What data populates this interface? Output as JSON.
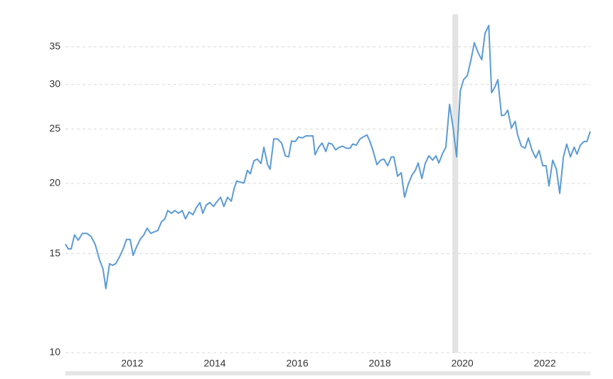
{
  "chart_data": {
    "type": "line",
    "x": [
      2010.38,
      2010.45,
      2010.52,
      2010.6,
      2010.69,
      2010.79,
      2010.9,
      2011.0,
      2011.1,
      2011.21,
      2011.29,
      2011.36,
      2011.45,
      2011.52,
      2011.6,
      2011.69,
      2011.78,
      2011.86,
      2011.95,
      2012.02,
      2012.1,
      2012.19,
      2012.28,
      2012.36,
      2012.45,
      2012.53,
      2012.62,
      2012.71,
      2012.79,
      2012.86,
      2012.95,
      2013.03,
      2013.12,
      2013.21,
      2013.29,
      2013.38,
      2013.47,
      2013.55,
      2013.64,
      2013.71,
      2013.79,
      2013.88,
      2013.97,
      2014.05,
      2014.14,
      2014.22,
      2014.31,
      2014.4,
      2014.47,
      2014.53,
      2014.62,
      2014.71,
      2014.79,
      2014.86,
      2014.95,
      2015.03,
      2015.12,
      2015.19,
      2015.28,
      2015.34,
      2015.43,
      2015.52,
      2015.62,
      2015.71,
      2015.79,
      2015.86,
      2015.95,
      2016.03,
      2016.12,
      2016.21,
      2016.29,
      2016.38,
      2016.43,
      2016.52,
      2016.6,
      2016.69,
      2016.76,
      2016.84,
      2016.93,
      2017.02,
      2017.1,
      2017.19,
      2017.28,
      2017.34,
      2017.43,
      2017.52,
      2017.6,
      2017.69,
      2017.76,
      2017.83,
      2017.93,
      2018.02,
      2018.1,
      2018.19,
      2018.28,
      2018.34,
      2018.43,
      2018.52,
      2018.6,
      2018.69,
      2018.78,
      2018.86,
      2018.93,
      2019.02,
      2019.1,
      2019.19,
      2019.28,
      2019.36,
      2019.43,
      2019.52,
      2019.6,
      2019.69,
      2019.78,
      2019.86,
      2019.95,
      2020.03,
      2020.12,
      2020.21,
      2020.29,
      2020.38,
      2020.47,
      2020.55,
      2020.64,
      2020.71,
      2020.79,
      2020.86,
      2020.95,
      2021.03,
      2021.1,
      2021.19,
      2021.28,
      2021.34,
      2021.43,
      2021.52,
      2021.6,
      2021.69,
      2021.78,
      2021.86,
      2021.95,
      2022.03,
      2022.1,
      2022.19,
      2022.28,
      2022.36,
      2022.45,
      2022.53,
      2022.62,
      2022.71,
      2022.78,
      2022.86,
      2022.95,
      2023.02,
      2023.1
    ],
    "values": [
      15.6,
      15.3,
      15.3,
      16.2,
      15.85,
      16.3,
      16.3,
      16.1,
      15.6,
      14.6,
      14.1,
      13.0,
      14.4,
      14.3,
      14.4,
      14.8,
      15.3,
      15.9,
      15.9,
      14.9,
      15.4,
      15.9,
      16.2,
      16.65,
      16.3,
      16.4,
      16.5,
      17.1,
      17.3,
      17.9,
      17.7,
      17.9,
      17.7,
      17.9,
      17.3,
      17.8,
      17.6,
      18.1,
      18.5,
      17.7,
      18.3,
      18.5,
      18.2,
      18.55,
      18.9,
      18.2,
      18.9,
      18.6,
      19.6,
      20.2,
      20.1,
      20.05,
      21.1,
      20.8,
      21.95,
      22.1,
      21.7,
      23.2,
      21.6,
      21.2,
      24.0,
      24.0,
      23.6,
      22.4,
      22.3,
      23.8,
      23.75,
      24.2,
      24.1,
      24.3,
      24.3,
      24.3,
      22.5,
      23.2,
      23.6,
      22.8,
      23.6,
      23.5,
      22.95,
      23.2,
      23.3,
      23.1,
      23.1,
      23.5,
      23.4,
      24.0,
      24.2,
      24.4,
      23.75,
      22.95,
      21.6,
      22.0,
      22.1,
      21.5,
      22.3,
      22.3,
      20.6,
      20.9,
      18.9,
      19.95,
      20.7,
      21.1,
      21.75,
      20.4,
      21.7,
      22.4,
      22.0,
      22.4,
      21.75,
      22.6,
      23.2,
      27.65,
      25.0,
      22.3,
      29.2,
      30.6,
      31.1,
      33.2,
      35.6,
      34.2,
      33.2,
      37.0,
      38.2,
      29.0,
      29.7,
      30.6,
      26.4,
      26.5,
      27.0,
      25.1,
      25.8,
      24.4,
      23.3,
      23.1,
      24.1,
      22.9,
      22.2,
      22.9,
      21.5,
      21.5,
      19.8,
      22.0,
      21.2,
      19.2,
      22.3,
      23.5,
      22.3,
      23.2,
      22.55,
      23.4,
      23.75,
      23.75,
      24.75
    ],
    "color": "#5b9bd5",
    "xlim": [
      2010.38,
      2023.1
    ],
    "xticks": [
      2012,
      2014,
      2016,
      2018,
      2020,
      2022
    ],
    "ylim": [
      10,
      40
    ],
    "yticks": [
      10,
      15,
      20,
      25,
      30,
      35
    ],
    "log_scale": true,
    "grid": true,
    "shaded_region": [
      2019.76,
      2019.9
    ]
  }
}
